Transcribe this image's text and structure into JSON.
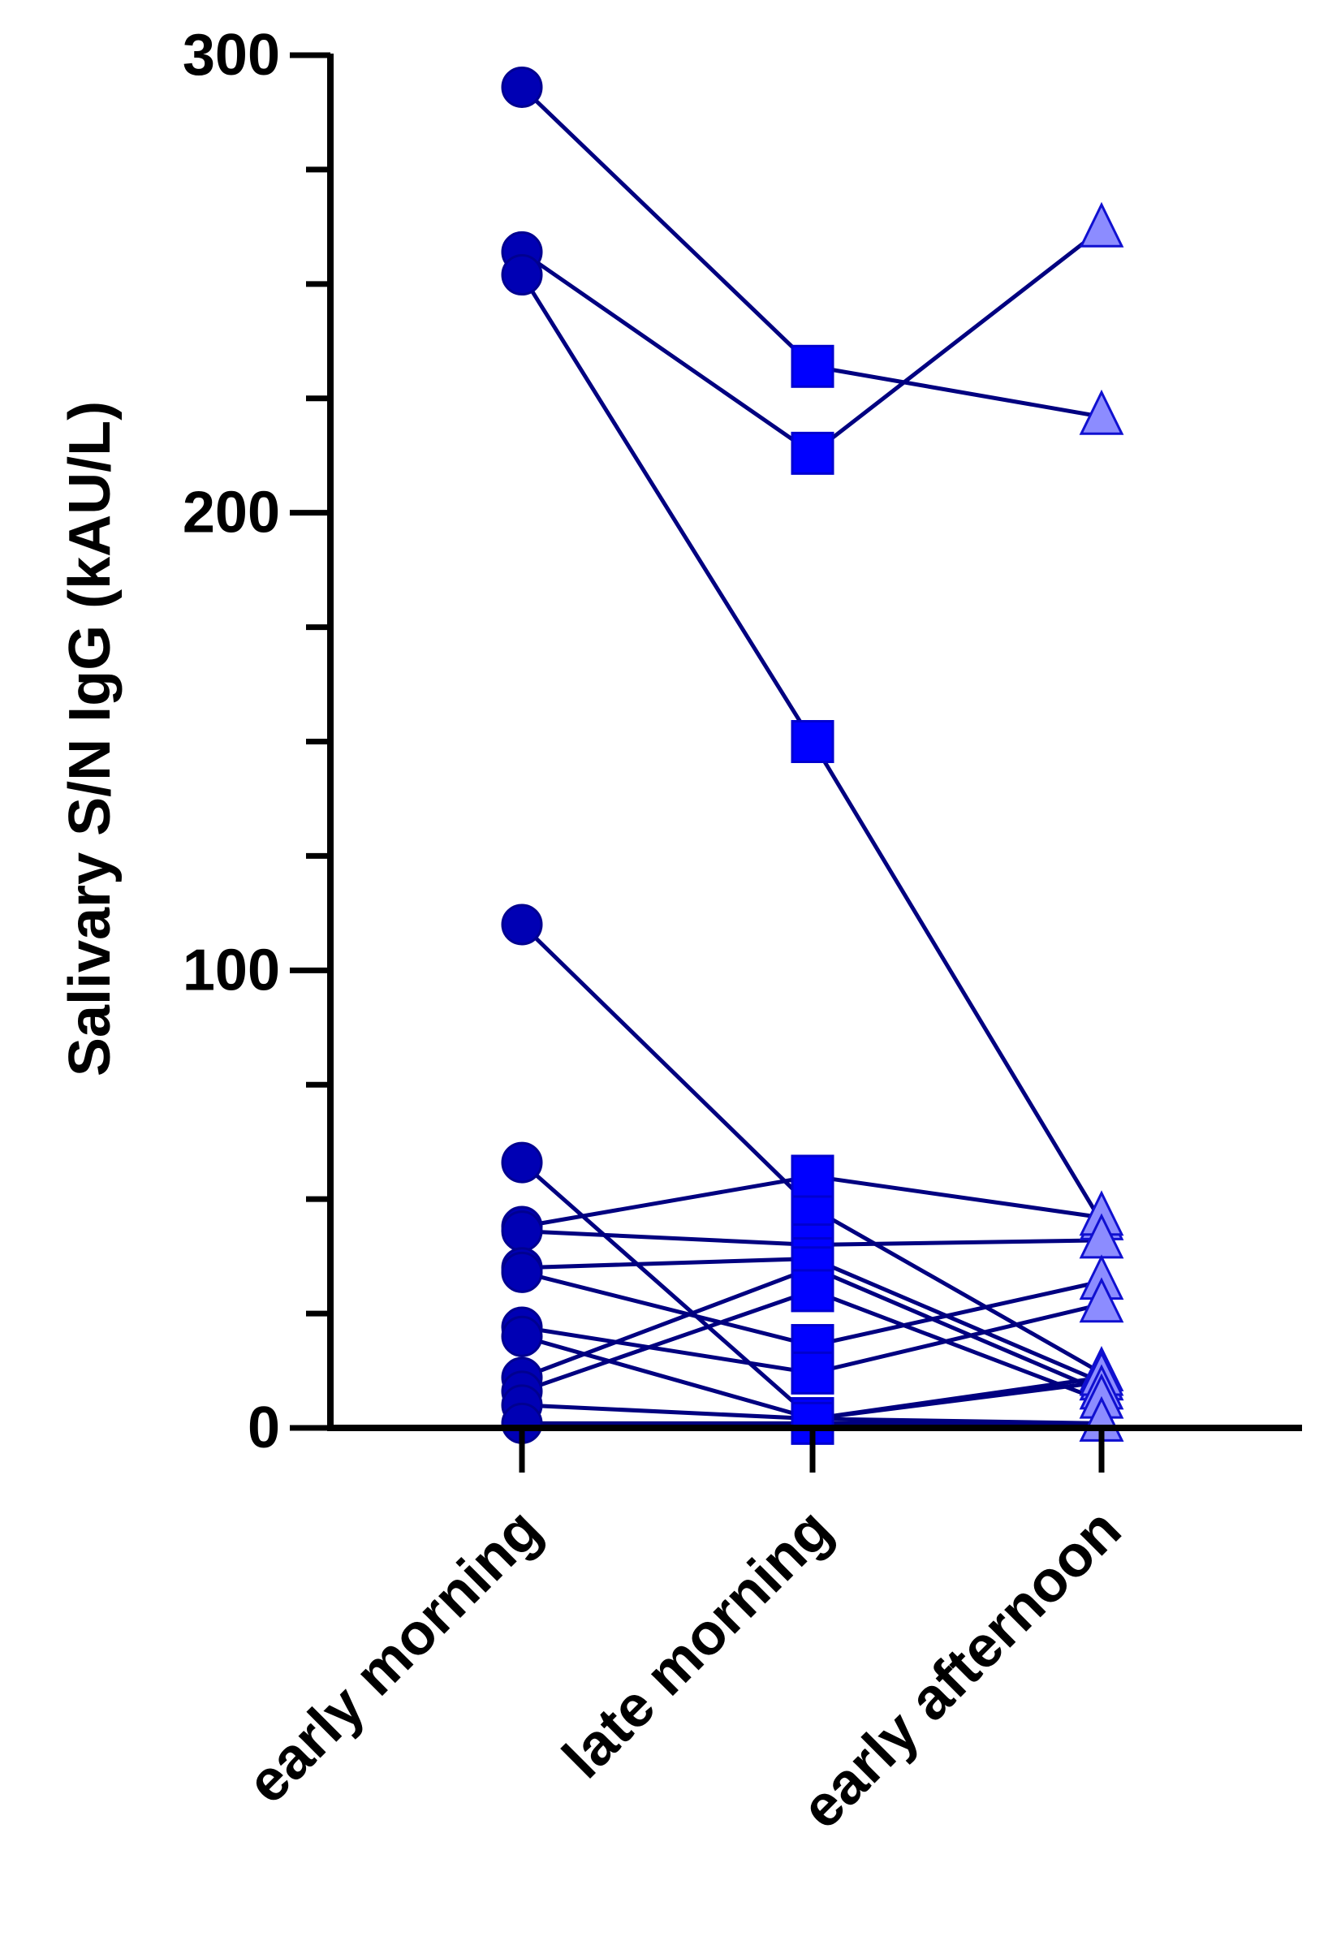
{
  "chart_data": {
    "type": "line",
    "title": "",
    "xlabel": "",
    "ylabel": "Salivary S/N IgG (kAU/L)",
    "categories": [
      "early morning",
      "late morning",
      "early afternoon"
    ],
    "ylim": [
      0,
      300
    ],
    "yticks": [
      "0",
      "100",
      "200",
      "300"
    ],
    "minor_tick_step": 25,
    "grid": false,
    "marker_by_category": [
      "circle",
      "square",
      "triangle"
    ],
    "colors": {
      "circle": "#0000b4",
      "square": "#0000ff",
      "triangle": "#8c8cff",
      "line": "#000080",
      "triangle_edge": "#1010d0"
    },
    "subjects": [
      [
        293,
        232,
        221
      ],
      [
        257,
        213,
        262
      ],
      [
        252,
        150,
        45
      ],
      [
        110,
        48,
        12
      ],
      [
        58,
        2,
        10
      ],
      [
        44,
        55,
        46
      ],
      [
        43,
        40,
        41
      ],
      [
        35,
        37,
        10
      ],
      [
        34,
        18,
        32
      ],
      [
        22,
        12,
        27
      ],
      [
        20,
        2,
        11
      ],
      [
        11,
        35,
        8
      ],
      [
        8,
        30,
        6
      ],
      [
        5,
        2,
        1
      ],
      [
        1,
        1,
        1
      ]
    ]
  }
}
